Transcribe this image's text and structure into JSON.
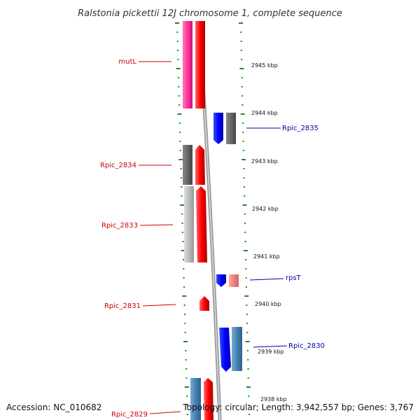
{
  "title": "Ralstonia pickettii 12J chromosome 1, complete sequence",
  "footer": {
    "accession": "Accession: NC_010682",
    "summary": "Topology: circular; Length: 3,942,557 bp; Genes: 3,767"
  },
  "ticks": [
    "2945 kbp",
    "2944 kbp",
    "2943 kbp",
    "2942 kbp",
    "2941 kbp",
    "2940 kbp",
    "2939 kbp",
    "2938 kbp"
  ],
  "genes": {
    "left": [
      "mutL",
      "Rpic_2834",
      "Rpic_2833",
      "Rpic_2831",
      "Rpic_2829"
    ],
    "right": [
      "Rpic_2835",
      "rpsT",
      "Rpic_2830"
    ]
  },
  "colors": {
    "forward_gene": "#ff0000",
    "reverse_gene": "#0000ff",
    "pink_gene": "#ff3399",
    "gray_gene": "#666666",
    "light_gray_gene": "#bbbbbb",
    "steel_blue_gene": "#4682b4",
    "light_red_gene": "#f08080",
    "track_dots": "#228822",
    "backbone": "#888888"
  }
}
